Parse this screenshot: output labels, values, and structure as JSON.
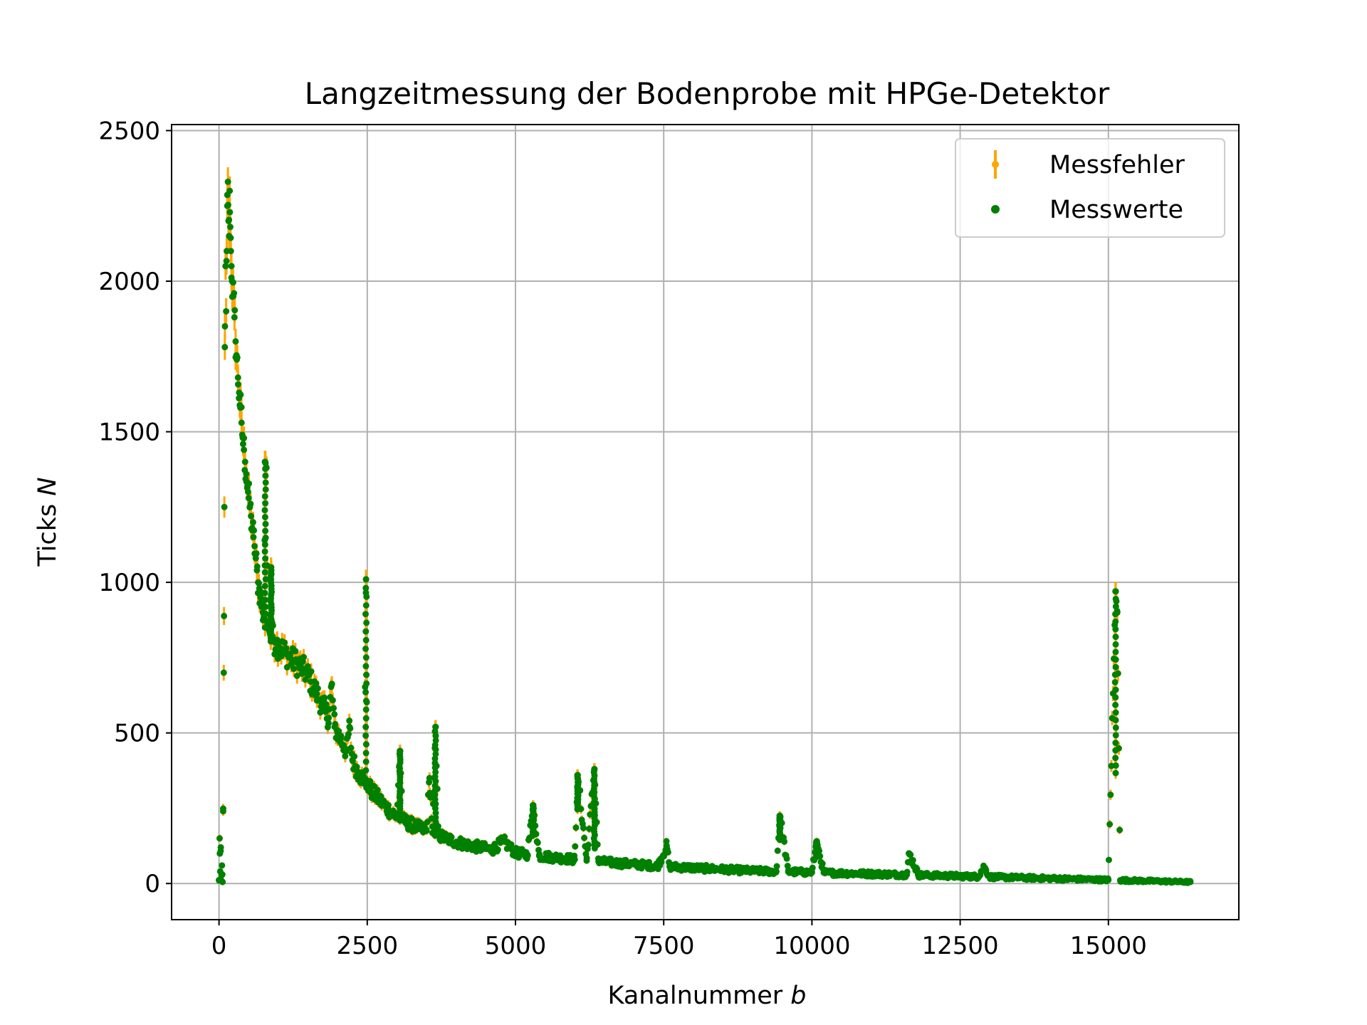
{
  "chart_data": {
    "type": "scatter",
    "title": "Langzeitmessung der Bodenprobe mit HPGe-Detektor",
    "xlabel_text": "Kanalnummer ",
    "xlabel_italic": "b",
    "ylabel_text": "Ticks ",
    "ylabel_italic": "N",
    "xlim": [
      -800,
      17200
    ],
    "ylim": [
      -120,
      2520
    ],
    "xticks": [
      0,
      2500,
      5000,
      7500,
      10000,
      12500,
      15000
    ],
    "yticks": [
      0,
      500,
      1000,
      1500,
      2000,
      2500
    ],
    "xtick_labels": [
      "0",
      "2500",
      "5000",
      "7500",
      "10000",
      "12500",
      "15000"
    ],
    "ytick_labels": [
      "0",
      "500",
      "1000",
      "1500",
      "2000",
      "2500"
    ],
    "grid": true,
    "legend_position": "upper right",
    "series": [
      {
        "name": "Messfehler",
        "kind": "errorbar",
        "color": "#ffa500"
      },
      {
        "name": "Messwerte",
        "kind": "scatter",
        "color": "#008000"
      }
    ],
    "points": [
      [
        0,
        10
      ],
      [
        10,
        150
      ],
      [
        20,
        40
      ],
      [
        30,
        120
      ],
      [
        40,
        10
      ],
      [
        50,
        60
      ],
      [
        60,
        5
      ],
      [
        70,
        240
      ],
      [
        80,
        700
      ],
      [
        90,
        1250
      ],
      [
        100,
        1850
      ],
      [
        110,
        2050
      ],
      [
        120,
        1900
      ],
      [
        130,
        2100
      ],
      [
        140,
        2250
      ],
      [
        150,
        2330
      ],
      [
        160,
        2200
      ],
      [
        170,
        2150
      ],
      [
        180,
        2300
      ],
      [
        190,
        2180
      ],
      [
        200,
        2100
      ],
      [
        210,
        2050
      ],
      [
        220,
        2000
      ],
      [
        240,
        1950
      ],
      [
        260,
        1880
      ],
      [
        280,
        1800
      ],
      [
        300,
        1740
      ],
      [
        320,
        1680
      ],
      [
        340,
        1630
      ],
      [
        360,
        1580
      ],
      [
        380,
        1530
      ],
      [
        400,
        1480
      ],
      [
        420,
        1440
      ],
      [
        440,
        1400
      ],
      [
        460,
        1360
      ],
      [
        480,
        1320
      ],
      [
        500,
        1280
      ],
      [
        520,
        1250
      ],
      [
        540,
        1220
      ],
      [
        560,
        1180
      ],
      [
        580,
        1150
      ],
      [
        600,
        1120
      ],
      [
        620,
        1080
      ],
      [
        640,
        1040
      ],
      [
        660,
        1000
      ],
      [
        680,
        980
      ],
      [
        700,
        950
      ],
      [
        720,
        920
      ],
      [
        740,
        900
      ],
      [
        760,
        880
      ],
      [
        780,
        1400
      ],
      [
        800,
        1380
      ],
      [
        820,
        860
      ],
      [
        840,
        850
      ],
      [
        860,
        830
      ],
      [
        880,
        1050
      ],
      [
        900,
        820
      ],
      [
        950,
        800
      ],
      [
        1000,
        790
      ],
      [
        1050,
        780
      ],
      [
        1100,
        770
      ],
      [
        1150,
        760
      ],
      [
        1200,
        750
      ],
      [
        1250,
        740
      ],
      [
        1300,
        735
      ],
      [
        1350,
        725
      ],
      [
        1400,
        715
      ],
      [
        1450,
        705
      ],
      [
        1500,
        690
      ],
      [
        1550,
        670
      ],
      [
        1600,
        650
      ],
      [
        1650,
        630
      ],
      [
        1700,
        610
      ],
      [
        1750,
        590
      ],
      [
        1800,
        570
      ],
      [
        1850,
        550
      ],
      [
        1900,
        660
      ],
      [
        1950,
        520
      ],
      [
        2000,
        500
      ],
      [
        2050,
        480
      ],
      [
        2100,
        460
      ],
      [
        2150,
        440
      ],
      [
        2200,
        520
      ],
      [
        2250,
        410
      ],
      [
        2300,
        390
      ],
      [
        2350,
        370
      ],
      [
        2400,
        355
      ],
      [
        2450,
        340
      ],
      [
        2480,
        1010
      ],
      [
        2500,
        330
      ],
      [
        2550,
        315
      ],
      [
        2600,
        300
      ],
      [
        2650,
        290
      ],
      [
        2700,
        280
      ],
      [
        2750,
        268
      ],
      [
        2800,
        258
      ],
      [
        2850,
        248
      ],
      [
        2900,
        238
      ],
      [
        2950,
        230
      ],
      [
        3000,
        222
      ],
      [
        3050,
        440
      ],
      [
        3100,
        210
      ],
      [
        3200,
        200
      ],
      [
        3300,
        190
      ],
      [
        3400,
        182
      ],
      [
        3500,
        175
      ],
      [
        3550,
        350
      ],
      [
        3600,
        168
      ],
      [
        3650,
        520
      ],
      [
        3700,
        160
      ],
      [
        3800,
        152
      ],
      [
        3900,
        145
      ],
      [
        4000,
        138
      ],
      [
        4200,
        128
      ],
      [
        4400,
        120
      ],
      [
        4600,
        112
      ],
      [
        4800,
        140
      ],
      [
        5000,
        102
      ],
      [
        5200,
        96
      ],
      [
        5300,
        260
      ],
      [
        5400,
        92
      ],
      [
        5600,
        88
      ],
      [
        5800,
        84
      ],
      [
        6000,
        80
      ],
      [
        6050,
        360
      ],
      [
        6200,
        76
      ],
      [
        6330,
        380
      ],
      [
        6400,
        73
      ],
      [
        6600,
        70
      ],
      [
        6800,
        67
      ],
      [
        7000,
        64
      ],
      [
        7200,
        61
      ],
      [
        7400,
        58
      ],
      [
        7550,
        125
      ],
      [
        7600,
        56
      ],
      [
        7800,
        54
      ],
      [
        8000,
        52
      ],
      [
        8200,
        50
      ],
      [
        8400,
        48
      ],
      [
        8600,
        46
      ],
      [
        8800,
        44
      ],
      [
        9000,
        42
      ],
      [
        9200,
        41
      ],
      [
        9400,
        40
      ],
      [
        9460,
        225
      ],
      [
        9600,
        39
      ],
      [
        9800,
        38
      ],
      [
        10000,
        37
      ],
      [
        10080,
        140
      ],
      [
        10200,
        36
      ],
      [
        10400,
        35
      ],
      [
        10600,
        34
      ],
      [
        10800,
        33
      ],
      [
        11000,
        32
      ],
      [
        11200,
        31
      ],
      [
        11400,
        30
      ],
      [
        11600,
        29
      ],
      [
        11640,
        100
      ],
      [
        11800,
        28
      ],
      [
        12000,
        27
      ],
      [
        12200,
        26
      ],
      [
        12400,
        25
      ],
      [
        12600,
        24
      ],
      [
        12800,
        23
      ],
      [
        12900,
        55
      ],
      [
        13000,
        22
      ],
      [
        13200,
        21
      ],
      [
        13400,
        20
      ],
      [
        13600,
        19
      ],
      [
        13800,
        18
      ],
      [
        14000,
        17
      ],
      [
        14200,
        16
      ],
      [
        14400,
        15
      ],
      [
        14600,
        14
      ],
      [
        14800,
        13
      ],
      [
        15000,
        12
      ],
      [
        15120,
        970
      ],
      [
        15150,
        900
      ],
      [
        15200,
        11
      ],
      [
        15400,
        10
      ],
      [
        15600,
        9
      ],
      [
        15800,
        8
      ],
      [
        16000,
        7
      ],
      [
        16200,
        6
      ],
      [
        16383,
        5
      ]
    ],
    "spike_channels": [
      780,
      880,
      2480,
      3050,
      3650,
      5300,
      6050,
      6330,
      9460,
      10080,
      15120
    ],
    "spike_tops": [
      1400,
      1050,
      1010,
      440,
      520,
      260,
      360,
      380,
      225,
      140,
      970
    ]
  }
}
